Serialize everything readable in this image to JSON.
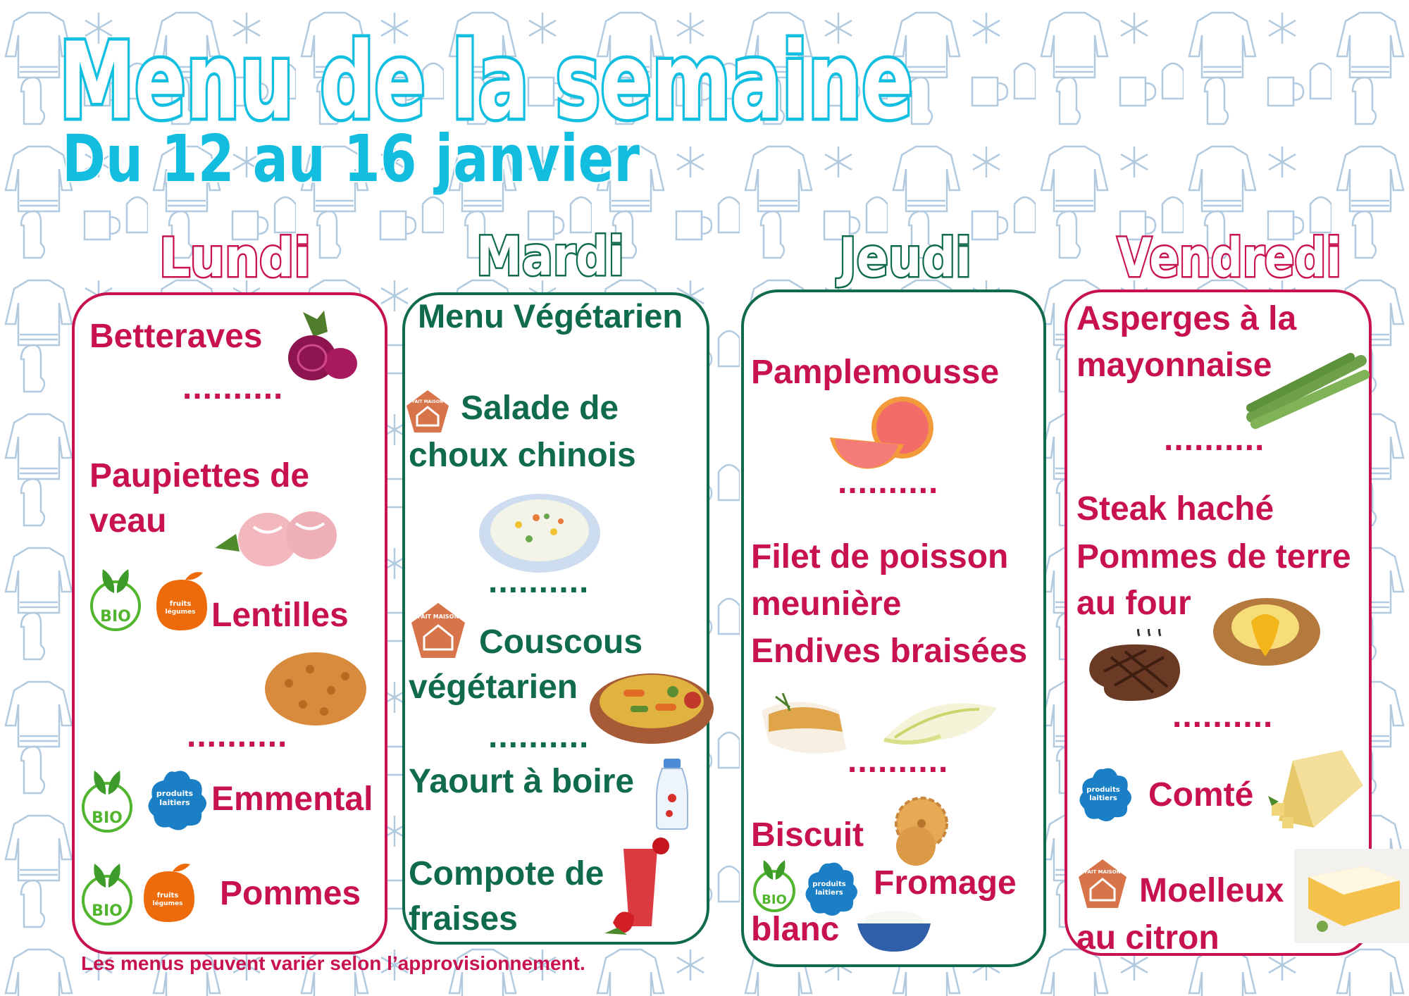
{
  "title": "Menu de la semaine",
  "subtitle": "Du 12 au 16 janvier",
  "colors": {
    "title_outline": "#12bfe0",
    "subtitle": "#12bde0",
    "pink": "#c8124f",
    "green": "#0f6b4c",
    "background_pattern": "#a9c4dc",
    "bio_green": "#52b52f",
    "fruits_orange": "#ee6b0c",
    "laitiers_blue": "#1a7fc4",
    "fait_maison": "#d8744a"
  },
  "days": [
    {
      "name": "Lundi",
      "lines": [
        "Betteraves",
        "..........",
        "Paupiettes de",
        "veau",
        "Lentilles",
        "..........",
        "Emmental",
        "Pommes"
      ]
    },
    {
      "name": "Mardi",
      "lines": [
        "Menu Végétarien",
        "Salade de",
        "choux chinois",
        "..........",
        "Couscous",
        "végétarien",
        "..........",
        "Yaourt à boire",
        "Compote de",
        "fraises"
      ]
    },
    {
      "name": "Jeudi",
      "lines": [
        "Pamplemousse",
        "..........",
        "Filet de poisson",
        "meunière",
        "Endives braisées",
        "..........",
        "Biscuit",
        "Fromage",
        "blanc"
      ]
    },
    {
      "name": "Vendredi",
      "lines": [
        "Asperges à la",
        "mayonnaise",
        "..........",
        "Steak haché",
        "Pommes de terre",
        "au four",
        "..........",
        "Comté",
        "Moelleux",
        "au citron"
      ]
    }
  ],
  "logos": {
    "bio": "BIO",
    "fruits": "fruits & légumes à l'école",
    "laitiers": "des produits laitiers à l'école",
    "fait_maison": "FAIT MAISON"
  },
  "icons": [
    "beetroot",
    "veal-paupiettes",
    "lentils",
    "chinese-cabbage-salad",
    "couscous",
    "drinkable-yogurt",
    "strawberry-compote",
    "grapefruit",
    "fish-fillet",
    "endive",
    "biscuit",
    "fromage-blanc-bowl",
    "asparagus",
    "steak",
    "baked-potato",
    "comte-cheese",
    "lemon-cake"
  ],
  "footer": "Les menus peuvent varier selon l’approvisionnement."
}
